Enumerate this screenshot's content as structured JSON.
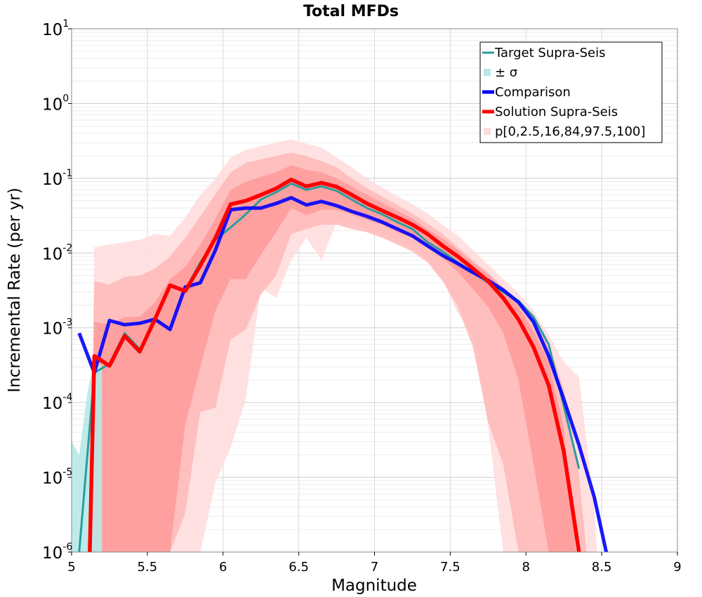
{
  "chart_data": {
    "type": "line",
    "title": "Total MFDs",
    "xlabel": "Magnitude",
    "ylabel": "Incremental Rate (per yr)",
    "xlim": [
      5,
      9
    ],
    "ylim": [
      1e-06,
      10
    ],
    "y_scale": "log",
    "grid": true,
    "legend_position": "top-right",
    "x_ticks": [
      "5",
      "5.5",
      "6",
      "6.5",
      "7",
      "7.5",
      "8",
      "8.5",
      "9"
    ],
    "y_ticks": [
      {
        "base": "10",
        "exp": "1",
        "value": 10
      },
      {
        "base": "10",
        "exp": "0",
        "value": 1
      },
      {
        "base": "10",
        "exp": "-1",
        "value": 0.1
      },
      {
        "base": "10",
        "exp": "-2",
        "value": 0.01
      },
      {
        "base": "10",
        "exp": "-3",
        "value": 0.001
      },
      {
        "base": "10",
        "exp": "-4",
        "value": 0.0001
      },
      {
        "base": "10",
        "exp": "-5",
        "value": 1e-05
      },
      {
        "base": "10",
        "exp": "-6",
        "value": 1e-06
      }
    ],
    "colors": {
      "target": "#2a9d9d",
      "sigma": "#b8e8e8",
      "comparison": "#0000ff",
      "solution": "#ff0000",
      "band_outer": "#ffdcdc",
      "band_mid": "#ffb9b9",
      "band_inner": "#ff9a9a"
    },
    "legend": [
      {
        "label": "Target Supra-Seis",
        "kind": "line",
        "color_key": "target"
      },
      {
        "label": "± σ",
        "kind": "patch",
        "color_key": "sigma"
      },
      {
        "label": "Comparison",
        "kind": "line",
        "color_key": "comparison"
      },
      {
        "label": "Solution Supra-Seis",
        "kind": "line",
        "color_key": "solution"
      },
      {
        "label": "p[0,2.5,16,84,97.5,100]",
        "kind": "patch",
        "color_key": "band_outer"
      }
    ],
    "series": [
      {
        "name": "Target Supra-Seis",
        "key": "target",
        "x": [
          5.05,
          5.15,
          5.25,
          5.35,
          5.45,
          5.55,
          5.65,
          5.75,
          5.85,
          5.95,
          6.05,
          6.15,
          6.25,
          6.35,
          6.45,
          6.55,
          6.65,
          6.75,
          6.85,
          6.95,
          7.05,
          7.15,
          7.25,
          7.35,
          7.45,
          7.55,
          7.65,
          7.75,
          7.85,
          7.95,
          8.05,
          8.15,
          8.25,
          8.35
        ],
        "y": [
          1e-06,
          0.00025,
          0.00033,
          0.00085,
          0.00052,
          0.0012,
          0.0037,
          0.0032,
          0.0075,
          0.015,
          0.022,
          0.033,
          0.052,
          0.065,
          0.085,
          0.07,
          0.078,
          0.068,
          0.052,
          0.04,
          0.033,
          0.026,
          0.021,
          0.014,
          0.0105,
          0.0075,
          0.0055,
          0.004,
          0.003,
          0.0023,
          0.0014,
          0.0006,
          9e-05,
          1.3e-05
        ]
      },
      {
        "name": "Comparison",
        "key": "comparison",
        "x": [
          5.05,
          5.15,
          5.25,
          5.35,
          5.45,
          5.55,
          5.65,
          5.75,
          5.85,
          5.95,
          6.05,
          6.15,
          6.25,
          6.35,
          6.45,
          6.55,
          6.65,
          6.75,
          6.85,
          6.95,
          7.05,
          7.15,
          7.25,
          7.35,
          7.45,
          7.55,
          7.65,
          7.75,
          7.85,
          7.95,
          8.05,
          8.15,
          8.25,
          8.35,
          8.45,
          8.53
        ],
        "y": [
          0.00085,
          0.00025,
          0.00125,
          0.0011,
          0.00115,
          0.0013,
          0.00095,
          0.0035,
          0.004,
          0.011,
          0.038,
          0.04,
          0.04,
          0.046,
          0.055,
          0.044,
          0.049,
          0.043,
          0.036,
          0.031,
          0.026,
          0.021,
          0.017,
          0.0125,
          0.0093,
          0.0072,
          0.0055,
          0.0043,
          0.0032,
          0.0022,
          0.0012,
          0.00042,
          0.00011,
          2.7e-05,
          5.5e-06,
          1e-06
        ]
      },
      {
        "name": "Solution Supra-Seis",
        "key": "solution",
        "x": [
          5.12,
          5.15,
          5.25,
          5.35,
          5.45,
          5.55,
          5.65,
          5.75,
          5.85,
          5.95,
          6.05,
          6.15,
          6.25,
          6.35,
          6.45,
          6.55,
          6.65,
          6.75,
          6.85,
          6.95,
          7.05,
          7.15,
          7.25,
          7.35,
          7.45,
          7.55,
          7.65,
          7.75,
          7.85,
          7.95,
          8.05,
          8.15,
          8.25,
          8.35
        ],
        "y": [
          1e-06,
          0.00042,
          0.00031,
          0.00078,
          0.00048,
          0.0013,
          0.0037,
          0.0031,
          0.0068,
          0.016,
          0.045,
          0.05,
          0.06,
          0.073,
          0.096,
          0.078,
          0.087,
          0.077,
          0.06,
          0.046,
          0.037,
          0.03,
          0.024,
          0.018,
          0.0125,
          0.009,
          0.0062,
          0.0042,
          0.0025,
          0.0013,
          0.00055,
          0.00017,
          2.2e-05,
          1e-06
        ]
      }
    ],
    "bands": [
      {
        "name": "p0-100",
        "key": "band_outer",
        "x": [
          5.12,
          5.15,
          5.25,
          5.35,
          5.45,
          5.55,
          5.65,
          5.75,
          5.85,
          5.95,
          6.05,
          6.15,
          6.25,
          6.35,
          6.45,
          6.55,
          6.65,
          6.75,
          6.85,
          6.95,
          7.05,
          7.15,
          7.25,
          7.35,
          7.45,
          7.55,
          7.65,
          7.75,
          7.85,
          7.95,
          8.05,
          8.15,
          8.25,
          8.35,
          8.45,
          8.47
        ],
        "upper": [
          1e-06,
          0.012,
          0.013,
          0.014,
          0.015,
          0.018,
          0.017,
          0.03,
          0.06,
          0.1,
          0.19,
          0.24,
          0.27,
          0.3,
          0.33,
          0.29,
          0.26,
          0.19,
          0.14,
          0.1,
          0.075,
          0.058,
          0.045,
          0.034,
          0.024,
          0.017,
          0.011,
          0.007,
          0.0045,
          0.0029,
          0.0017,
          0.0008,
          0.00035,
          0.00022,
          4e-06,
          1e-06
        ],
        "lower": [
          1e-06,
          1e-06,
          1e-06,
          1e-06,
          1e-06,
          1e-06,
          1e-06,
          1e-06,
          1e-06,
          8.5e-06,
          2.5e-05,
          0.00011,
          0.0035,
          0.0025,
          0.008,
          0.016,
          0.008,
          0.026,
          0.024,
          0.021,
          0.018,
          0.015,
          0.012,
          0.0085,
          0.0045,
          0.00155,
          0.0008,
          5e-05,
          1e-06,
          1e-06,
          1e-06,
          1e-06,
          1e-06,
          1e-06,
          1e-06,
          1e-06
        ]
      },
      {
        "name": "p2.5-97.5",
        "key": "band_mid",
        "x": [
          5.12,
          5.15,
          5.25,
          5.35,
          5.45,
          5.55,
          5.65,
          5.75,
          5.85,
          5.95,
          6.05,
          6.15,
          6.25,
          6.35,
          6.45,
          6.55,
          6.65,
          6.75,
          6.85,
          6.95,
          7.05,
          7.15,
          7.25,
          7.35,
          7.45,
          7.55,
          7.65,
          7.75,
          7.85,
          7.95,
          8.05,
          8.15,
          8.25,
          8.35,
          8.4
        ],
        "upper": [
          1e-06,
          0.0042,
          0.0038,
          0.0048,
          0.005,
          0.0062,
          0.009,
          0.016,
          0.031,
          0.062,
          0.12,
          0.16,
          0.18,
          0.2,
          0.22,
          0.2,
          0.17,
          0.14,
          0.1,
          0.074,
          0.057,
          0.044,
          0.034,
          0.025,
          0.018,
          0.012,
          0.008,
          0.0055,
          0.0035,
          0.0022,
          0.0012,
          0.0006,
          0.00015,
          1.1e-05,
          1e-06
        ],
        "lower": [
          1e-06,
          1e-06,
          1e-06,
          1e-06,
          1e-06,
          1e-06,
          1e-06,
          3.3e-06,
          7.5e-05,
          8.5e-05,
          0.0007,
          0.00095,
          0.0028,
          0.005,
          0.018,
          0.021,
          0.024,
          0.024,
          0.021,
          0.019,
          0.016,
          0.013,
          0.0105,
          0.0075,
          0.0042,
          0.0019,
          0.00055,
          5.5e-05,
          1.5e-05,
          1e-06,
          1e-06,
          1e-06,
          1e-06,
          1e-06,
          1e-06
        ]
      },
      {
        "name": "p16-84",
        "key": "band_inner",
        "x": [
          5.12,
          5.15,
          5.25,
          5.35,
          5.45,
          5.55,
          5.65,
          5.75,
          5.85,
          5.95,
          6.05,
          6.15,
          6.25,
          6.35,
          6.45,
          6.55,
          6.65,
          6.75,
          6.85,
          6.95,
          7.05,
          7.15,
          7.25,
          7.35,
          7.45,
          7.55,
          7.65,
          7.75,
          7.85,
          7.95,
          8.05,
          8.15,
          8.25,
          8.33
        ],
        "upper": [
          1e-06,
          0.0012,
          0.0011,
          0.0014,
          0.0014,
          0.0022,
          0.0045,
          0.0065,
          0.013,
          0.029,
          0.07,
          0.09,
          0.105,
          0.12,
          0.15,
          0.13,
          0.12,
          0.1,
          0.078,
          0.06,
          0.047,
          0.037,
          0.029,
          0.021,
          0.0155,
          0.011,
          0.0074,
          0.0052,
          0.0033,
          0.0019,
          0.0009,
          0.00035,
          4.5e-05,
          1e-06
        ],
        "lower": [
          1e-06,
          1e-06,
          1e-06,
          1e-06,
          1e-06,
          1e-06,
          1e-06,
          5e-05,
          0.0003,
          0.0017,
          0.0045,
          0.0045,
          0.0095,
          0.019,
          0.04,
          0.032,
          0.038,
          0.038,
          0.033,
          0.028,
          0.024,
          0.019,
          0.016,
          0.012,
          0.0085,
          0.0056,
          0.0033,
          0.0019,
          0.00085,
          0.0002,
          1.5e-05,
          1e-06,
          1e-06,
          1e-06
        ]
      },
      {
        "name": "± σ",
        "key": "sigma",
        "x": [
          5.0,
          5.05,
          5.1,
          5.15,
          5.2
        ],
        "upper": [
          3e-05,
          2e-05,
          0.00012,
          0.0004,
          0.0003
        ],
        "lower": [
          1e-06,
          1e-06,
          1e-06,
          1e-06,
          1e-06
        ]
      }
    ]
  }
}
